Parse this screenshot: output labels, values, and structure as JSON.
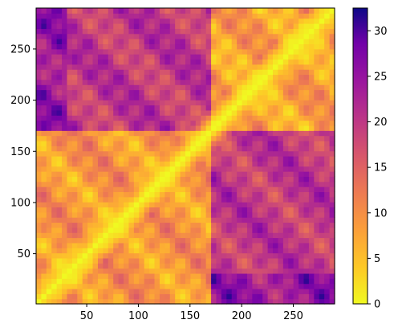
{
  "chart_data": {
    "type": "heatmap",
    "title": "",
    "xlabel": "",
    "ylabel": "",
    "xlim": [
      1,
      290
    ],
    "ylim": [
      1,
      290
    ],
    "xticks": [
      50,
      100,
      150,
      200,
      250
    ],
    "yticks": [
      50,
      100,
      150,
      200,
      250
    ],
    "colorbar": {
      "min": 0,
      "max": 32.5,
      "ticks": [
        0,
        5,
        10,
        15,
        20,
        25,
        30
      ],
      "colormap": "plasma_r"
    },
    "matrix": {
      "description_values": "symmetric distance-like matrix, zero along diagonal",
      "diagonal_value": 0,
      "max_value": 32.5,
      "features": [
        {
          "x_range": [
            1,
            30
          ],
          "y_range": [
            170,
            290
          ],
          "level": 29
        },
        {
          "x_range": [
            170,
            290
          ],
          "y_range": [
            1,
            30
          ],
          "level": 29
        },
        {
          "x_range": [
            1,
            170
          ],
          "y_range": [
            1,
            170
          ],
          "level": 9
        },
        {
          "x_range": [
            170,
            290
          ],
          "y_range": [
            170,
            290
          ],
          "level": 8
        },
        {
          "x_range": [
            1,
            170
          ],
          "y_range": [
            170,
            290
          ],
          "level": 20
        },
        {
          "x_range": [
            170,
            290
          ],
          "y_range": [
            1,
            170
          ],
          "level": 20
        }
      ]
    }
  }
}
